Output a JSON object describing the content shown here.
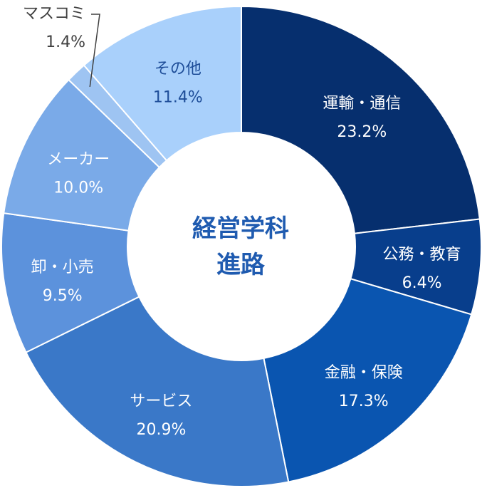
{
  "chart_data": {
    "type": "pie",
    "variant": "donut",
    "center_title_lines": [
      "経営学科",
      "進路"
    ],
    "slices": [
      {
        "label": "運輸・通信",
        "value": 23.2,
        "value_text": "23.2%",
        "color": "#062f6e",
        "label_color": "#ffffff"
      },
      {
        "label": "公務・教育",
        "value": 6.4,
        "value_text": "6.4%",
        "color": "#083e8c",
        "label_color": "#ffffff"
      },
      {
        "label": "金融・保険",
        "value": 17.3,
        "value_text": "17.3%",
        "color": "#0a55b0",
        "label_color": "#ffffff"
      },
      {
        "label": "サービス",
        "value": 20.9,
        "value_text": "20.9%",
        "color": "#3a78c8",
        "label_color": "#ffffff"
      },
      {
        "label": "卸・小売",
        "value": 9.5,
        "value_text": "9.5%",
        "color": "#5c92dc",
        "label_color": "#ffffff"
      },
      {
        "label": "メーカー",
        "value": 10.0,
        "value_text": "10.0%",
        "color": "#7aaae8",
        "label_color": "#ffffff"
      },
      {
        "label": "マスコミ",
        "value": 1.4,
        "value_text": "1.4%",
        "color": "#9ec4f2",
        "label_color": "#404040",
        "callout": true
      },
      {
        "label": "その他",
        "value": 11.4,
        "value_text": "11.4%",
        "color": "#a9d0fb",
        "label_color": "#1f4e99"
      }
    ],
    "center_color": "#1f5bb0",
    "start": "12 o'clock",
    "direction": "clockwise"
  }
}
